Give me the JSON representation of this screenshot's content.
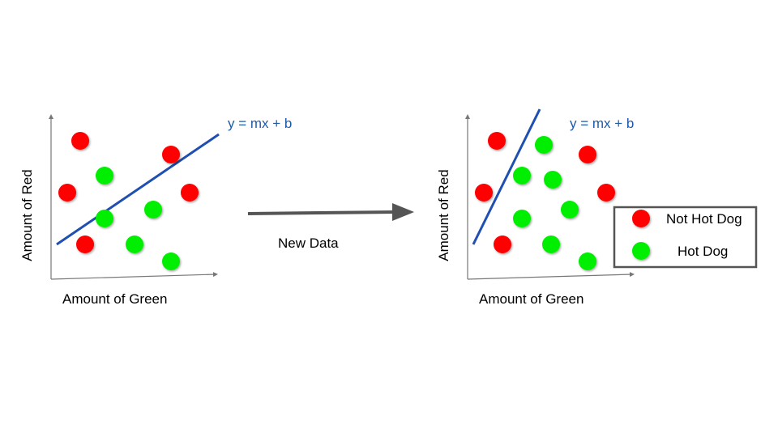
{
  "colors": {
    "not_hot_dog": "#ff0000",
    "hot_dog": "#00ee00",
    "boundary": "#1f4fb0",
    "equation_text": "#1f5aa8",
    "arrow": "#555555",
    "axis": "#777777"
  },
  "left_panel": {
    "x_label": "Amount of Green",
    "y_label": "Amount of Red",
    "equation": "y = mx + b"
  },
  "right_panel": {
    "x_label": "Amount of Green",
    "y_label": "Amount of Red",
    "equation": "y = mx + b"
  },
  "transition": {
    "label": "New Data"
  },
  "legend": {
    "items": [
      {
        "label": "Not Hot Dog",
        "class": "not_hot_dog"
      },
      {
        "label": "Hot Dog",
        "class": "hot_dog"
      }
    ]
  }
}
